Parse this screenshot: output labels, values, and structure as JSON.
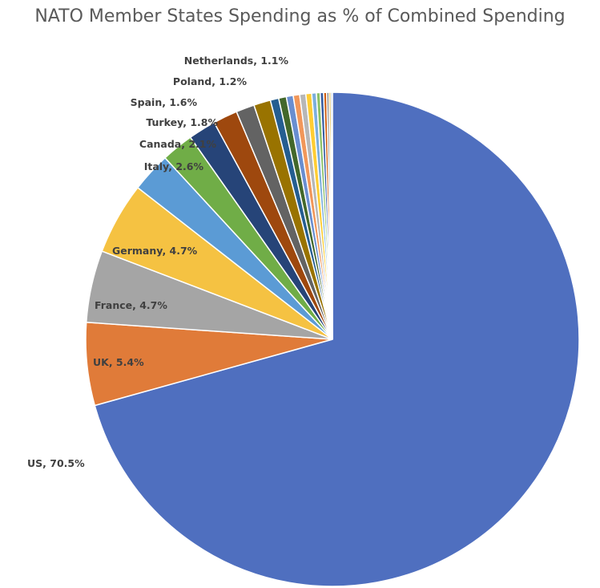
{
  "chart_data": {
    "type": "pie",
    "title": "NATO Member States Spending as % of Combined Spending",
    "slices": [
      {
        "name": "US",
        "value": 70.5,
        "label": "US, 70.5%",
        "color": "#4F6FBF"
      },
      {
        "name": "UK",
        "value": 5.4,
        "label": "UK, 5.4%",
        "color": "#E07B39"
      },
      {
        "name": "France",
        "value": 4.7,
        "label": "France, 4.7%",
        "color": "#A5A5A5"
      },
      {
        "name": "Germany",
        "value": 4.7,
        "label": "Germany, 4.7%",
        "color": "#F5C242"
      },
      {
        "name": "Italy",
        "value": 2.6,
        "label": "Italy, 2.6%",
        "color": "#5B9BD5"
      },
      {
        "name": "Canada",
        "value": 2.1,
        "label": "Canada, 2.1%",
        "color": "#70AD47"
      },
      {
        "name": "Turkey",
        "value": 1.8,
        "label": "Turkey, 1.8%",
        "color": "#264478"
      },
      {
        "name": "Spain",
        "value": 1.6,
        "label": "Spain, 1.6%",
        "color": "#9E480E"
      },
      {
        "name": "Poland",
        "value": 1.2,
        "label": "Poland, 1.2%",
        "color": "#636363"
      },
      {
        "name": "Netherlands",
        "value": 1.1,
        "label": "Netherlands, 1.1%",
        "color": "#997300"
      },
      {
        "name": "",
        "value": 0.55,
        "label": "",
        "color": "#255E91"
      },
      {
        "name": "",
        "value": 0.5,
        "label": "",
        "color": "#43682B"
      },
      {
        "name": "",
        "value": 0.45,
        "label": "",
        "color": "#698ED0"
      },
      {
        "name": "",
        "value": 0.42,
        "label": "",
        "color": "#F1975A"
      },
      {
        "name": "",
        "value": 0.4,
        "label": "",
        "color": "#B7B7B7"
      },
      {
        "name": "",
        "value": 0.38,
        "label": "",
        "color": "#FFCD33"
      },
      {
        "name": "",
        "value": 0.3,
        "label": "",
        "color": "#7CAFDD"
      },
      {
        "name": "",
        "value": 0.25,
        "label": "",
        "color": "#8CC168"
      },
      {
        "name": "",
        "value": 0.22,
        "label": "",
        "color": "#335AA1"
      },
      {
        "name": "",
        "value": 0.2,
        "label": "",
        "color": "#D26012"
      },
      {
        "name": "",
        "value": 0.15,
        "label": "",
        "color": "#848484"
      },
      {
        "name": "",
        "value": 0.12,
        "label": "",
        "color": "#CC9A00"
      },
      {
        "name": "",
        "value": 0.1,
        "label": "",
        "color": "#8FAADC"
      }
    ]
  }
}
